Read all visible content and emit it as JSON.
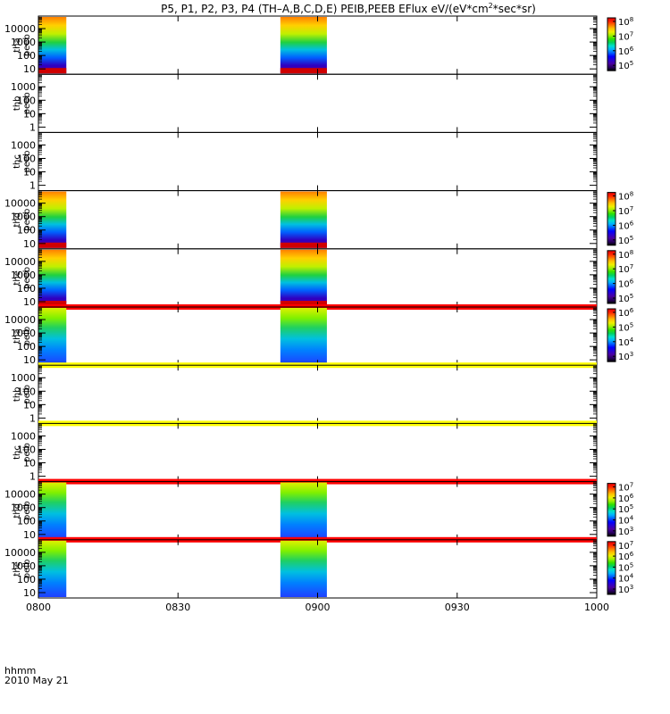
{
  "title_prefix": "P5, P1, P2, P3, P4 (TH–A,B,C,D,E) PEIB,PEEB EFlux eV/(eV*cm",
  "title_sup": "2",
  "title_suffix": "*sec*sr)",
  "footer": {
    "label_line1": "hhmm",
    "label_line2": "2010 May 21"
  },
  "colorbar_palette": [
    "#000000",
    "#2a0060",
    "#4b00a0",
    "#2a00d0",
    "#0000ff",
    "#005cff",
    "#00b0ff",
    "#00e0d0",
    "#00d060",
    "#30e000",
    "#a0f000",
    "#f0f000",
    "#ffc000",
    "#ff7000",
    "#ff2000",
    "#e00000"
  ],
  "chart_data": {
    "type": "heatmap",
    "title": "P5, P1, P2, P3, P4 (TH–A,B,C,D,E) PEIB,PEEB EFlux eV/(eV*cm²*sec*sr)",
    "x_axis": {
      "range": [
        "0800",
        "1000"
      ],
      "ticks": [
        "0800",
        "0830",
        "0900",
        "0930",
        "1000"
      ],
      "label": "hhmm",
      "date": "2010 May 21"
    },
    "panels": [
      {
        "probe": "tha",
        "product": "peeb",
        "ylabel": [
          "tha",
          "peeb"
        ],
        "yticks": [
          "10",
          "100",
          "1000",
          "10000"
        ],
        "colorbar_ticks": [
          [
            "10",
            "5"
          ],
          [
            "10",
            "6"
          ],
          [
            "10",
            "7"
          ],
          [
            "10",
            "8"
          ]
        ],
        "data_intervals": [
          [
            "0800",
            "0806"
          ],
          [
            "0852",
            "0902"
          ]
        ],
        "status_bar": null
      },
      {
        "probe": "thb",
        "product": "peeb",
        "ylabel": [
          "thb",
          "peeb"
        ],
        "yticks": [
          "1",
          "10",
          "100",
          "1000"
        ],
        "colorbar_ticks": [],
        "data_intervals": [],
        "status_bar": null
      },
      {
        "probe": "thc",
        "product": "peeb",
        "ylabel": [
          "thc",
          "peeb"
        ],
        "yticks": [
          "1",
          "10",
          "100",
          "1000"
        ],
        "colorbar_ticks": [],
        "data_intervals": [],
        "status_bar": null
      },
      {
        "probe": "thd",
        "product": "peeb",
        "ylabel": [
          "thd",
          "peeb"
        ],
        "yticks": [
          "10",
          "100",
          "1000",
          "10000"
        ],
        "colorbar_ticks": [
          [
            "10",
            "5"
          ],
          [
            "10",
            "6"
          ],
          [
            "10",
            "7"
          ],
          [
            "10",
            "8"
          ]
        ],
        "data_intervals": [
          [
            "0800",
            "0806"
          ],
          [
            "0852",
            "0902"
          ]
        ],
        "status_bar": null
      },
      {
        "probe": "the",
        "product": "peeb",
        "ylabel": [
          "the",
          "peeb"
        ],
        "yticks": [
          "10",
          "100",
          "1000",
          "10000"
        ],
        "colorbar_ticks": [
          [
            "10",
            "5"
          ],
          [
            "10",
            "6"
          ],
          [
            "10",
            "7"
          ],
          [
            "10",
            "8"
          ]
        ],
        "data_intervals": [
          [
            "0800",
            "0806"
          ],
          [
            "0852",
            "0902"
          ]
        ],
        "status_bar": "red"
      },
      {
        "probe": "tha",
        "product": "peib",
        "ylabel": [
          "tha",
          "peib"
        ],
        "yticks": [
          "10",
          "100",
          "1000",
          "10000"
        ],
        "colorbar_ticks": [
          [
            "10",
            "3"
          ],
          [
            "10",
            "4"
          ],
          [
            "10",
            "5"
          ],
          [
            "10",
            "6"
          ]
        ],
        "data_intervals": [
          [
            "0800",
            "0806"
          ],
          [
            "0852",
            "0902"
          ]
        ],
        "status_bar": "yellow"
      },
      {
        "probe": "thb",
        "product": "peib",
        "ylabel": [
          "thb",
          "peib"
        ],
        "yticks": [
          "1",
          "10",
          "100",
          "1000"
        ],
        "colorbar_ticks": [],
        "data_intervals": [],
        "status_bar": "yellow"
      },
      {
        "probe": "thc",
        "product": "peib",
        "ylabel": [
          "thc",
          "peib"
        ],
        "yticks": [
          "1",
          "10",
          "100",
          "1000"
        ],
        "colorbar_ticks": [],
        "data_intervals": [],
        "status_bar": "red"
      },
      {
        "probe": "thd",
        "product": "peib",
        "ylabel": [
          "thd",
          "peib"
        ],
        "yticks": [
          "10",
          "100",
          "1000",
          "10000"
        ],
        "colorbar_ticks": [
          [
            "10",
            "3"
          ],
          [
            "10",
            "4"
          ],
          [
            "10",
            "5"
          ],
          [
            "10",
            "6"
          ],
          [
            "10",
            "7"
          ]
        ],
        "data_intervals": [
          [
            "0800",
            "0806"
          ],
          [
            "0852",
            "0902"
          ]
        ],
        "status_bar": "red"
      },
      {
        "probe": "the",
        "product": "peib",
        "ylabel": [
          "the",
          "peib"
        ],
        "yticks": [
          "10",
          "100",
          "1000",
          "10000"
        ],
        "colorbar_ticks": [
          [
            "10",
            "3"
          ],
          [
            "10",
            "4"
          ],
          [
            "10",
            "5"
          ],
          [
            "10",
            "6"
          ],
          [
            "10",
            "7"
          ]
        ],
        "data_intervals": [
          [
            "0800",
            "0806"
          ],
          [
            "0852",
            "0902"
          ]
        ],
        "status_bar": null
      }
    ],
    "grid": false,
    "legend": "colorbars on right"
  }
}
